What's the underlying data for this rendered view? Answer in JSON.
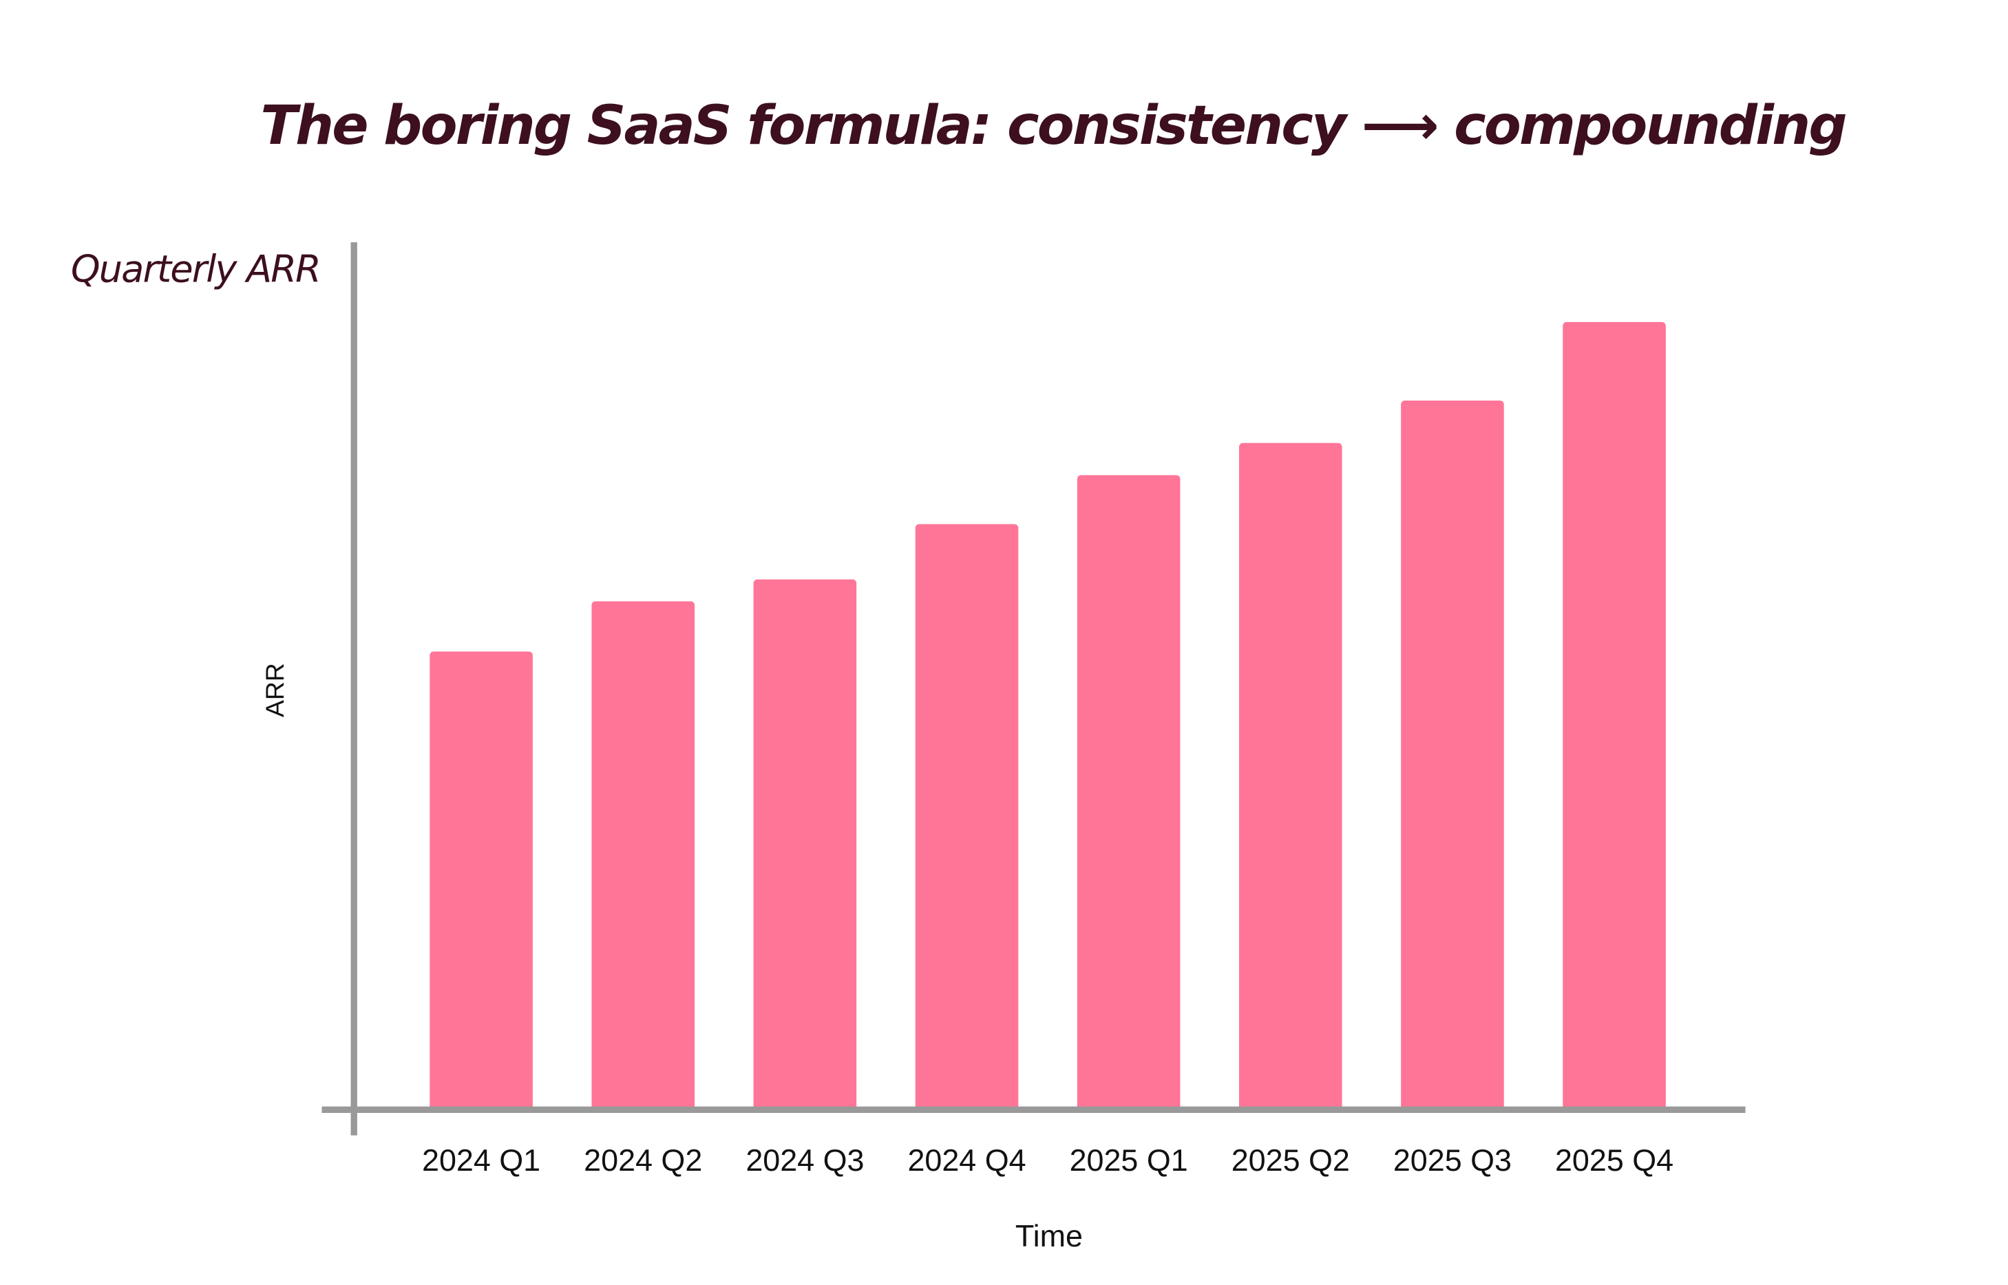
{
  "chart_data": {
    "type": "bar",
    "title": "The boring SaaS formula: consistency ⟶ compounding",
    "annotation": "Quarterly ARR",
    "ylabel": "ARR",
    "xlabel": "Time",
    "categories": [
      "2024 Q1",
      "2024 Q2",
      "2024 Q3",
      "2024 Q4",
      "2025 Q1",
      "2025 Q2",
      "2025 Q3",
      "2025 Q4"
    ],
    "values": [
      356,
      395,
      412,
      455,
      493,
      518,
      551,
      612
    ],
    "color": "#ff7597",
    "ylim": [
      0,
      672
    ]
  }
}
